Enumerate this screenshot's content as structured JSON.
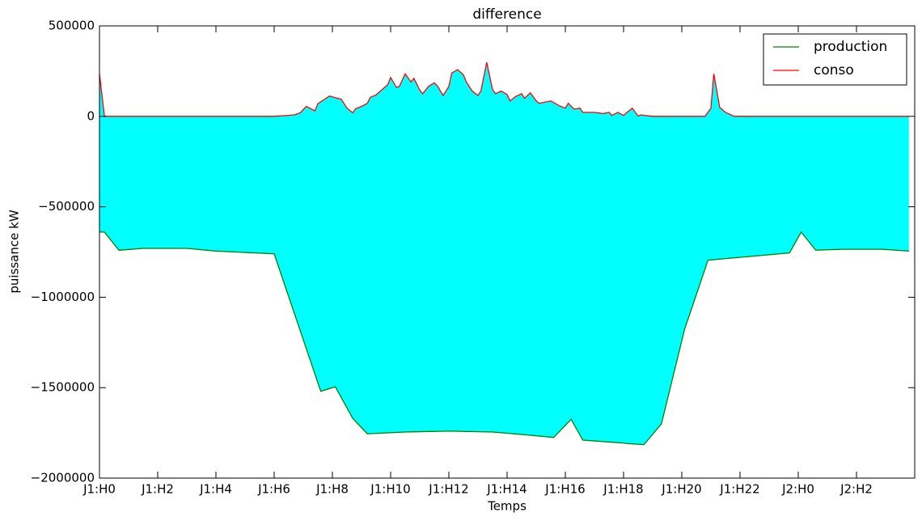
{
  "chart_data": {
    "type": "line",
    "title": "difference",
    "x_label": "Temps",
    "y_label": "puissance kW",
    "xlim": [
      0,
      28
    ],
    "xticks": [
      {
        "value": 0,
        "label": "J1:H0"
      },
      {
        "value": 2,
        "label": "J1:H2"
      },
      {
        "value": 4,
        "label": "J1:H4"
      },
      {
        "value": 6,
        "label": "J1:H6"
      },
      {
        "value": 8,
        "label": "J1:H8"
      },
      {
        "value": 10,
        "label": "J1:H10"
      },
      {
        "value": 12,
        "label": "J1:H12"
      },
      {
        "value": 14,
        "label": "J1:H14"
      },
      {
        "value": 16,
        "label": "J1:H16"
      },
      {
        "value": 18,
        "label": "J1:H18"
      },
      {
        "value": 20,
        "label": "J1:H20"
      },
      {
        "value": 22,
        "label": "J1:H22"
      },
      {
        "value": 24,
        "label": "J2:H0"
      },
      {
        "value": 26,
        "label": "J2:H2"
      }
    ],
    "ylim": [
      -2000000,
      500000
    ],
    "yticks": [
      500000,
      0,
      {
        "value": -500000,
        "label": "−500000"
      },
      {
        "value": -1000000,
        "label": "−1000000"
      },
      {
        "value": -1500000,
        "label": "−1500000"
      },
      {
        "value": -2000000,
        "label": "−2000000"
      }
    ],
    "fill_color": "#00ffff",
    "legend": "upper right",
    "series": [
      {
        "name": "production",
        "color": "#008000",
        "x": [
          0,
          0.17,
          0.67,
          1.5,
          3,
          4,
          6,
          7.6,
          8.1,
          8.7,
          9.2,
          10.5,
          12,
          13.5,
          14.6,
          15.6,
          16.2,
          16.6,
          17.9,
          18.2,
          18.7,
          19.3,
          20.1,
          20.9,
          23.7,
          24.1,
          24.6,
          25.5,
          26.9,
          27.8
        ],
        "values": [
          -640000,
          -640000,
          -740000,
          -730000,
          -730000,
          -745000,
          -760000,
          -1520000,
          -1495000,
          -1670000,
          -1755000,
          -1745000,
          -1740000,
          -1745000,
          -1760000,
          -1775000,
          -1675000,
          -1790000,
          -1805000,
          -1810000,
          -1815000,
          -1700000,
          -1175000,
          -795000,
          -755000,
          -640000,
          -740000,
          -735000,
          -735000,
          -745000
        ]
      },
      {
        "name": "conso",
        "color": "#ff0000",
        "x": [
          0,
          0.17,
          6,
          6.3,
          6.7,
          6.9,
          7.1,
          7.4,
          7.5,
          7.9,
          8.1,
          8.3,
          8.5,
          8.7,
          8.8,
          9.0,
          9.2,
          9.3,
          9.5,
          9.9,
          10,
          10.2,
          10.3,
          10.5,
          10.7,
          10.8,
          11,
          11.1,
          11.3,
          11.5,
          11.6,
          11.8,
          12,
          12.1,
          12.3,
          12.5,
          12.6,
          12.8,
          13,
          13.1,
          13.3,
          13.5,
          13.6,
          13.8,
          14,
          14.1,
          14.3,
          14.5,
          14.6,
          14.8,
          15,
          15.1,
          15.5,
          15.8,
          16,
          16.1,
          16.3,
          16.5,
          16.6,
          17,
          17.3,
          17.5,
          17.6,
          17.8,
          18,
          18.1,
          18.3,
          18.5,
          18.6,
          19,
          20.8,
          21,
          21.1,
          21.3,
          21.5,
          21.8,
          27.8
        ],
        "values": [
          235000,
          0,
          0,
          3000,
          8000,
          20000,
          55000,
          30000,
          70000,
          112000,
          103000,
          95000,
          45000,
          20000,
          42000,
          55000,
          72000,
          105000,
          118000,
          175000,
          215000,
          160000,
          165000,
          235000,
          190000,
          210000,
          145000,
          125000,
          165000,
          185000,
          170000,
          115000,
          165000,
          240000,
          258000,
          230000,
          190000,
          140000,
          115000,
          140000,
          298000,
          148000,
          125000,
          140000,
          120000,
          85000,
          110000,
          125000,
          100000,
          130000,
          85000,
          72000,
          85000,
          58000,
          45000,
          72000,
          40000,
          45000,
          22000,
          22000,
          15000,
          22000,
          5000,
          22000,
          5000,
          20000,
          45000,
          2000,
          8000,
          0,
          0,
          45000,
          235000,
          50000,
          22000,
          0,
          0
        ]
      }
    ]
  }
}
